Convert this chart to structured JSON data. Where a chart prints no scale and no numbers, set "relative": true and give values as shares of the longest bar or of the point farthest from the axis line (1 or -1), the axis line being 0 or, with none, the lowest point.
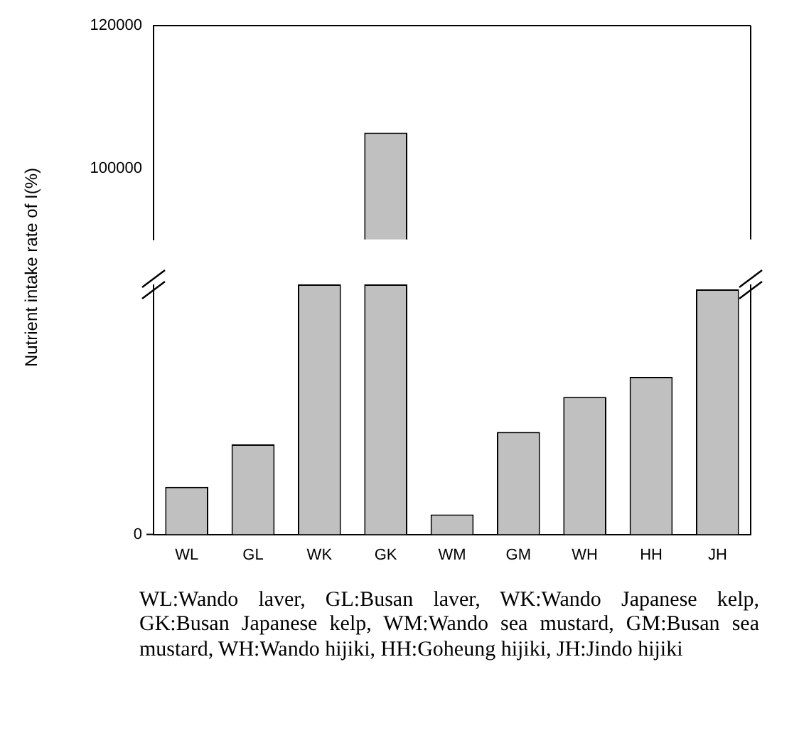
{
  "chart_data": [
    {
      "type": "bar",
      "ylabel": "Nutrient intake rate of I(%)",
      "categories": [
        null,
        null,
        null,
        null,
        null,
        null,
        null,
        null,
        null
      ],
      "values": [
        null,
        null,
        null,
        105000,
        null,
        null,
        null,
        null,
        null
      ],
      "color": "#c0c0c0",
      "ylim": [
        90000,
        120000
      ],
      "yticks": [
        100000,
        120000
      ],
      "tick_labels": "y",
      "grid": false,
      "legend": false
    },
    {
      "type": "bar",
      "categories": [
        "WL",
        "GL",
        "WK",
        "GK",
        "WM",
        "GM",
        "WH",
        "HH",
        "JH"
      ],
      "values": [
        0.19,
        0.36,
        1,
        1,
        0.08,
        0.41,
        0.55,
        0.63,
        0.98
      ],
      "color": "#c0c0c0",
      "relative": true,
      "grid": false,
      "legend": false,
      "annotations": [
        "0",
        "WL:Wando laver, GL:Busan laver, WK:Wando Japanese kelp, GK:Busan Japanese kelp, WM:Wando sea mustard, GM:Busan sea mustard, WH:Wando hijiki, HH:Goheung hijiki, JH:Jindo hijiki"
      ]
    }
  ]
}
